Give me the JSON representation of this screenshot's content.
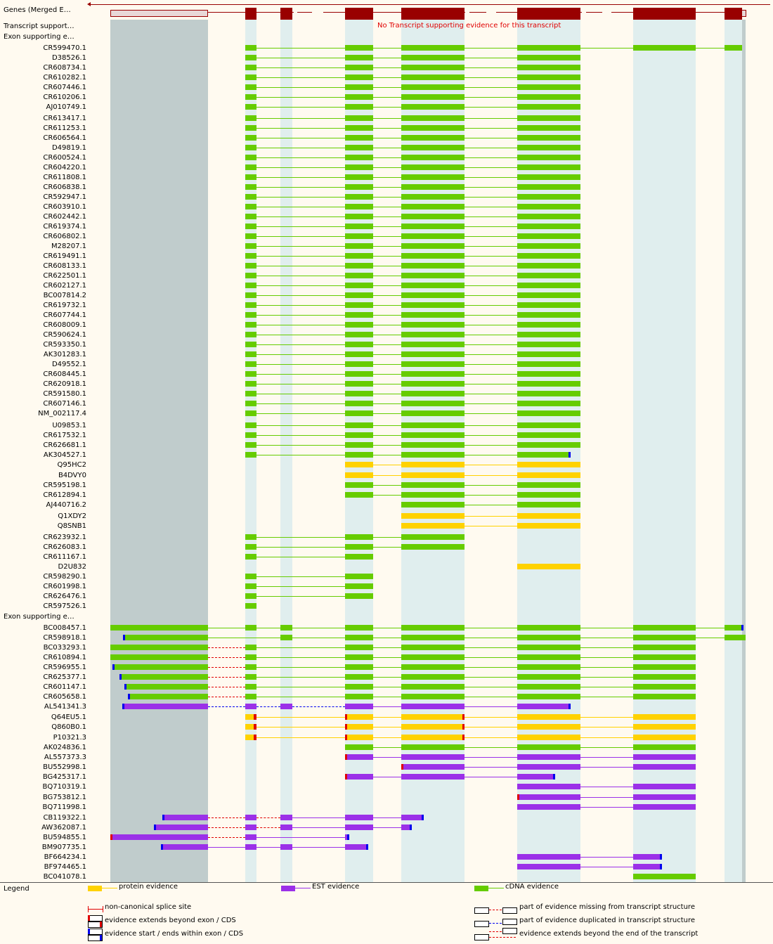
{
  "tracks": {
    "genes_label": "Genes (Merged E…",
    "transcript_support_label": "Transcript support…",
    "exon_section1_label": "Exon supporting e…",
    "exon_section2_label": "Exon supporting e…",
    "no_evidence_message": "No Transcript supporting evidence for this transcript"
  },
  "colors": {
    "protein": "#ffd200",
    "est": "#9b30e8",
    "cdna": "#66cc00",
    "exon": "#990000",
    "nonmatch": "#e00000",
    "partial": "#0000ee",
    "track_bg": "#fffaf0",
    "column_bg": "#e0eeee",
    "utr_bg": "#c0cccc"
  },
  "section1_rows": [
    "CR599470.1",
    "D38526.1",
    "CR608734.1",
    "CR610282.1",
    "CR607446.1",
    "CR610206.1",
    "AJ010749.1",
    "CR613417.1",
    "CR611253.1",
    "CR606564.1",
    "D49819.1",
    "CR600524.1",
    "CR604220.1",
    "CR611808.1",
    "CR606838.1",
    "CR592947.1",
    "CR603910.1",
    "CR602442.1",
    "CR619374.1",
    "CR606802.1",
    "M28207.1",
    "CR619491.1",
    "CR608133.1",
    "CR622501.1",
    "CR602127.1",
    "BC007814.2",
    "CR619732.1",
    "CR607744.1",
    "CR608009.1",
    "CR590624.1",
    "CR593350.1",
    "AK301283.1",
    "D49552.1",
    "CR608445.1",
    "CR620918.1",
    "CR591580.1",
    "CR607146.1",
    "NM_002117.4",
    "U09853.1",
    "CR617532.1",
    "CR626681.1",
    "AK304527.1",
    "Q95HC2",
    "B4DVY0",
    "CR595198.1",
    "CR612894.1",
    "AJ440716.2",
    "Q1XDY2",
    "Q8SNB1",
    "CR623932.1",
    "CR626083.1",
    "CR611167.1",
    "D2U832",
    "CR598290.1",
    "CR601998.1",
    "CR626476.1",
    "CR597526.1"
  ],
  "section2_rows": [
    "BC008457.1",
    "CR598918.1",
    "BC033293.1",
    "CR610894.1",
    "CR596955.1",
    "CR625377.1",
    "CR601147.1",
    "CR605658.1",
    "AL541341.3",
    "Q64EU5.1",
    "Q860B0.1",
    "P10321.3",
    "AK024836.1",
    "AL557373.3",
    "BU552998.1",
    "BG425317.1",
    "BQ710319.1",
    "BG753812.1",
    "BQ711998.1",
    "CB119322.1",
    "AW362087.1",
    "BU594855.1",
    "BM907735.1",
    "BF664234.1",
    "BF974465.1",
    "BC041078.1"
  ],
  "legend": {
    "title": "Legend",
    "protein": "protein evidence",
    "est": "EST evidence",
    "cdna": "cDNA evidence",
    "noncanonical": "non-canonical splice site",
    "extends_beyond": "evidence extends beyond exon / CDS",
    "start_within": "evidence start / ends within exon / CDS",
    "missing": "part of evidence missing from transcript structure",
    "duplicated": "part of evidence duplicated in transcript structure",
    "beyond_transcript": "evidence extends beyond the end of the transcript"
  }
}
